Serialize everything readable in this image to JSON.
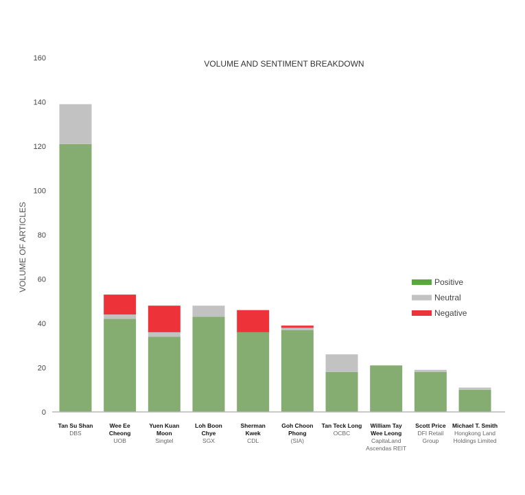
{
  "chart_data": {
    "type": "bar",
    "stacked": true,
    "title": "VOLUME AND SENTIMENT BREAKDOWN",
    "xlabel": "",
    "ylabel": "VOLUME OF ARTICLES",
    "ylim": [
      0,
      160
    ],
    "yticks": [
      "0",
      "20",
      "40",
      "60",
      "80",
      "100",
      "120",
      "140",
      "160"
    ],
    "categories": [
      {
        "name": [
          "Tan Su Shan"
        ],
        "org": [
          "DBS"
        ]
      },
      {
        "name": [
          "Wee Ee",
          "Cheong"
        ],
        "org": [
          "UOB"
        ]
      },
      {
        "name": [
          "Yuen Kuan",
          "Moon"
        ],
        "org": [
          "Singtel"
        ]
      },
      {
        "name": [
          "Loh Boon",
          "Chye"
        ],
        "org": [
          "SGX"
        ]
      },
      {
        "name": [
          "Sherman",
          "Kwek"
        ],
        "org": [
          "CDL"
        ]
      },
      {
        "name": [
          "Goh Choon",
          "Phong"
        ],
        "org": [
          "(SIA)"
        ]
      },
      {
        "name": [
          "Tan Teck Long"
        ],
        "org": [
          "OCBC"
        ]
      },
      {
        "name": [
          "William Tay",
          "Wee Leong"
        ],
        "org": [
          "CapitaLand",
          "Ascendas REIT"
        ]
      },
      {
        "name": [
          "Scott Price"
        ],
        "org": [
          "DFI Retail",
          "Group"
        ]
      },
      {
        "name": [
          "Michael T. Smith"
        ],
        "org": [
          "Hongkong Land",
          "Holdings Limited"
        ]
      }
    ],
    "series": [
      {
        "name": "Positive",
        "color": "#85ad72",
        "values": [
          121,
          42,
          34,
          43,
          36,
          37,
          18,
          21,
          18,
          10
        ]
      },
      {
        "name": "Neutral",
        "color": "#c2c2c2",
        "values": [
          18,
          2,
          2,
          5,
          0,
          1,
          8,
          0,
          1,
          1
        ]
      },
      {
        "name": "Negative",
        "color": "#ee3239",
        "values": [
          0,
          9,
          12,
          0,
          10,
          1,
          0,
          0,
          0,
          0
        ]
      }
    ],
    "legend": {
      "position": "right",
      "items": [
        {
          "label": "Positive",
          "color": "#58a83a"
        },
        {
          "label": "Neutral",
          "color": "#c2c2c2"
        },
        {
          "label": "Negative",
          "color": "#ee3239"
        }
      ]
    }
  }
}
